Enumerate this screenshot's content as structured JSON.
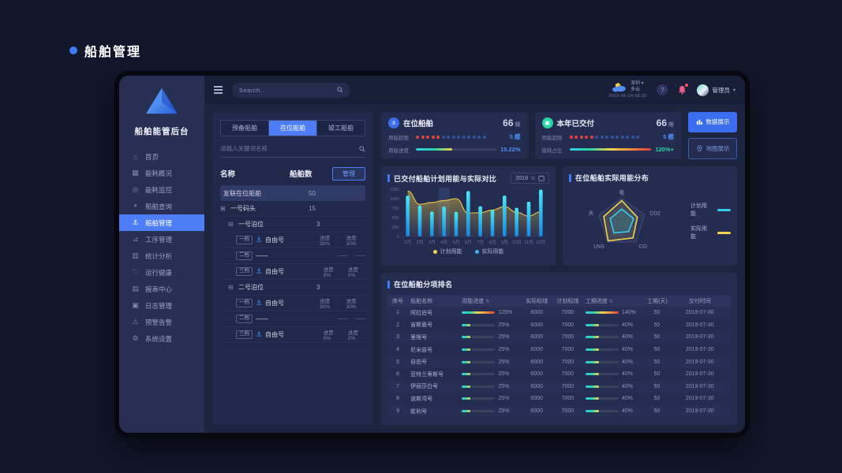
{
  "page": {
    "title": "船舶管理"
  },
  "icons": {
    "caret_down": "▾",
    "sort": "⇅",
    "expand": "⊞",
    "collapse": "⊟",
    "spinner": "⇅",
    "help_glyph": "?"
  },
  "sidebar": {
    "logo_text": "船舶能管后台",
    "items": [
      {
        "id": "home",
        "icon_name": "home-icon",
        "glyph": "⌂",
        "label": "首页",
        "active": false
      },
      {
        "id": "energy-overview",
        "icon_name": "energy-overview-icon",
        "glyph": "▦",
        "label": "能耗概况",
        "active": false
      },
      {
        "id": "energy-monitor",
        "icon_name": "energy-monitor-icon",
        "glyph": "◎",
        "label": "能耗监控",
        "active": false
      },
      {
        "id": "ship-query",
        "icon_name": "ship-query-icon",
        "glyph": "⌖",
        "label": "船舶查询",
        "active": false
      },
      {
        "id": "ship-manage",
        "icon_name": "ship-manage-icon",
        "glyph": "⚓",
        "label": "船舶管理",
        "active": true
      },
      {
        "id": "process-manage",
        "icon_name": "process-icon",
        "glyph": "⊿",
        "label": "工序管理",
        "active": false
      },
      {
        "id": "stats-analysis",
        "icon_name": "stats-icon",
        "glyph": "▥",
        "label": "统计分析",
        "active": false
      },
      {
        "id": "health",
        "icon_name": "health-icon",
        "glyph": "♡",
        "label": "运行健康",
        "active": false
      },
      {
        "id": "report-center",
        "icon_name": "report-icon",
        "glyph": "▤",
        "label": "报表中心",
        "active": false
      },
      {
        "id": "log-manage",
        "icon_name": "log-icon",
        "glyph": "▣",
        "label": "日志管理",
        "active": false
      },
      {
        "id": "alarm",
        "icon_name": "alarm-icon",
        "glyph": "⚠",
        "label": "预警告警",
        "active": false
      },
      {
        "id": "settings",
        "icon_name": "settings-icon",
        "glyph": "⚙",
        "label": "系统设置",
        "active": false
      }
    ]
  },
  "topbar": {
    "search_placeholder": "Search...",
    "weather": {
      "city": "深圳",
      "condition": "多云",
      "datetime": "2019-06-24  08:30"
    },
    "user_name": "管理员"
  },
  "panel": {
    "tabs": [
      "预备船舶",
      "在位船舶",
      "竣工船舶"
    ],
    "active_tab": 1,
    "search_placeholder": "请输入关键词名称",
    "name_col": "名称",
    "count_col": "船舶数",
    "manage_label": "管理",
    "tree": [
      {
        "type": "group",
        "label": "友联在位船舶",
        "count": "50"
      },
      {
        "type": "node",
        "state": "expand",
        "label": "一号码头",
        "count": "15",
        "level": 0
      },
      {
        "type": "node",
        "state": "collapse",
        "label": "一号泊位",
        "count": "3",
        "level": 1
      },
      {
        "type": "ship",
        "badge": "一档",
        "name": "自由号",
        "has_ship": true,
        "progress1": "进度30%",
        "progress2": "进度30%"
      },
      {
        "type": "ship",
        "badge": "二档",
        "name": "——",
        "has_ship": false,
        "progress1": "——",
        "progress2": "——"
      },
      {
        "type": "ship",
        "badge": "三档",
        "name": "自由号",
        "has_ship": true,
        "progress1": "进度0%",
        "progress2": "进度0%"
      },
      {
        "type": "node",
        "state": "collapse",
        "label": "二号泊位",
        "count": "3",
        "level": 1
      },
      {
        "type": "ship",
        "badge": "一档",
        "name": "自由号",
        "has_ship": true,
        "progress1": "进度30%",
        "progress2": "进度30%"
      },
      {
        "type": "ship",
        "badge": "二档",
        "name": "——",
        "has_ship": false,
        "progress1": "——",
        "progress2": "——"
      },
      {
        "type": "ship",
        "badge": "三档",
        "name": "自由号",
        "has_ship": true,
        "progress1": "进度0%",
        "progress2": "进度0%"
      }
    ]
  },
  "cards": [
    {
      "id": "onsite",
      "title": "在位船舶",
      "count": "66",
      "unit": "艘",
      "icon_name": "ship-icon",
      "icon_glyph": "⚓",
      "icon_color": "#3b6df0",
      "stats": [
        {
          "label": "用能超限",
          "type": "dots",
          "red": 5,
          "total": 14,
          "value": "5 艘",
          "value_color": "#4d8df5"
        },
        {
          "label": "用能进度",
          "type": "bar",
          "pct": 45,
          "gradient": "cool",
          "value": "15.22%",
          "value_color": "#4d8df5"
        }
      ]
    },
    {
      "id": "delivered",
      "title": "本年已交付",
      "count": "66",
      "unit": "艘",
      "icon_name": "delivered-icon",
      "icon_glyph": "▣",
      "icon_color": "#2bd4a4",
      "stats": [
        {
          "label": "用能超限",
          "type": "dots",
          "red": 5,
          "total": 14,
          "value": "5 艘",
          "value_color": "#4d8df5"
        },
        {
          "label": "能耗占比",
          "type": "bar",
          "pct": 100,
          "gradient": "full",
          "value": "120%+",
          "value_color": "#2bd4a4"
        }
      ]
    }
  ],
  "view_buttons": [
    {
      "label": "数据展示",
      "icon": "bar-chart-icon",
      "active": true
    },
    {
      "label": "地图展示",
      "icon": "map-pin-icon",
      "active": false
    }
  ],
  "chart_data": [
    {
      "type": "bar",
      "title": "已交付船舶计划用能与实际对比",
      "year": "2019",
      "categories": [
        "1月",
        "2月",
        "3月",
        "4月",
        "5月",
        "6月",
        "7月",
        "8月",
        "9月",
        "10月",
        "11月",
        "12月"
      ],
      "series": [
        {
          "name": "计划用能",
          "type": "area",
          "color": "#f2d24b",
          "values": [
            1200,
            850,
            900,
            950,
            1000,
            620,
            630,
            700,
            790,
            640,
            540,
            650
          ]
        },
        {
          "name": "实际用能",
          "type": "bar",
          "color": "#3ab6f5",
          "values": [
            1080,
            820,
            660,
            790,
            650,
            1200,
            800,
            700,
            1080,
            760,
            920,
            1240
          ]
        }
      ],
      "ylim": [
        0,
        1250
      ],
      "yticks": [
        0,
        250,
        500,
        750,
        1000,
        1250
      ],
      "highlight_index": 3,
      "legend_position": "bottom"
    },
    {
      "type": "radar",
      "title": "在位船舶实际用能分布",
      "axes": [
        "电",
        "CO2",
        "CO",
        "LNG",
        "水"
      ],
      "scale": [
        0,
        1
      ],
      "series": [
        {
          "name": "计划用能",
          "color": "#38cdea",
          "values": [
            0.55,
            0.52,
            0.48,
            0.55,
            0.5
          ]
        },
        {
          "name": "实际用能",
          "color": "#f2d24b",
          "values": [
            0.9,
            0.68,
            0.8,
            0.95,
            0.78
          ]
        }
      ],
      "legend_position": "right"
    }
  ],
  "table": {
    "title": "在位船舶分项排名",
    "columns": [
      {
        "label": "序号",
        "sortable": false
      },
      {
        "label": "船舶名称",
        "sortable": false
      },
      {
        "label": "用能进度",
        "sortable": true
      },
      {
        "label": "实际标煤",
        "sortable": false
      },
      {
        "label": "计划标煤",
        "sortable": false
      },
      {
        "label": "工期进度",
        "sortable": true
      },
      {
        "label": "工期(天)",
        "sortable": false
      },
      {
        "label": "交付时间",
        "sortable": false
      }
    ],
    "rows": [
      {
        "no": "1",
        "name": "阿拉伯号",
        "energy_pct": 125,
        "actual": "6000",
        "plan": "7000",
        "schedule_pct": 140,
        "days": "50",
        "date": "2019-07-30"
      },
      {
        "no": "2",
        "name": "宙斯盾号",
        "energy_pct": 25,
        "actual": "6000",
        "plan": "7000",
        "schedule_pct": 40,
        "days": "50",
        "date": "2019-07-30"
      },
      {
        "no": "3",
        "name": "里根号",
        "energy_pct": 25,
        "actual": "6000",
        "plan": "7000",
        "schedule_pct": 40,
        "days": "50",
        "date": "2019-07-30"
      },
      {
        "no": "4",
        "name": "尼米兹号",
        "energy_pct": 25,
        "actual": "6000",
        "plan": "7000",
        "schedule_pct": 40,
        "days": "50",
        "date": "2019-07-30"
      },
      {
        "no": "5",
        "name": "自由号",
        "energy_pct": 25,
        "actual": "6000",
        "plan": "7000",
        "schedule_pct": 40,
        "days": "50",
        "date": "2019-07-30"
      },
      {
        "no": "6",
        "name": "亚特兰蒂斯号",
        "energy_pct": 25,
        "actual": "6000",
        "plan": "7000",
        "schedule_pct": 40,
        "days": "50",
        "date": "2019-07-30"
      },
      {
        "no": "7",
        "name": "伊丽莎白号",
        "energy_pct": 25,
        "actual": "6000",
        "plan": "7000",
        "schedule_pct": 40,
        "days": "50",
        "date": "2019-07-30"
      },
      {
        "no": "8",
        "name": "波斯湾号",
        "energy_pct": 25,
        "actual": "6000",
        "plan": "7000",
        "schedule_pct": 40,
        "days": "50",
        "date": "2019-07-30"
      },
      {
        "no": "9",
        "name": "胜利号",
        "energy_pct": 25,
        "actual": "6000",
        "plan": "7000",
        "schedule_pct": 40,
        "days": "50",
        "date": "2019-07-30"
      }
    ]
  }
}
